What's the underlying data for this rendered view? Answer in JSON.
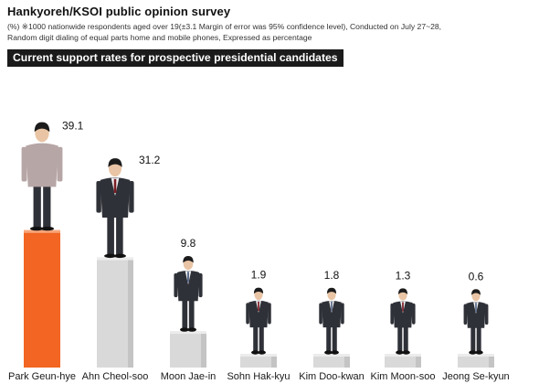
{
  "header": {
    "title": "Hankyoreh/KSOI public opinion survey",
    "note_line1": "(%) ※1000 nationwide respondents aged over 19(±3.1 Margin of error was 95% confidence level), Conducted on July 27~28,",
    "note_line2": "Random digit dialing of equal parts home and mobile phones, Expressed as percentage",
    "subtitle": "Current support rates for prospective presidential candidates"
  },
  "chart_data": {
    "type": "bar",
    "title": "Current support rates for prospective presidential candidates",
    "categories": [
      "Park Geun-hye",
      "Ahn Cheol-soo",
      "Moon Jae-in",
      "Sohn Hak-kyu",
      "Kim Doo-kwan",
      "Kim Moon-soo",
      "Jeong Se-kyun"
    ],
    "values": [
      39.1,
      31.2,
      9.8,
      1.9,
      1.8,
      1.3,
      0.6
    ],
    "value_labels": [
      "39.1",
      "31.2",
      "9.8",
      "1.9",
      "1.8",
      "1.3",
      "0.6"
    ],
    "highlight_index": 0,
    "colors": {
      "highlight_bar": "#f26522",
      "highlight_value": "#e8611a",
      "bar": "#d9d9d9",
      "bar_shade": "#c4c4c4",
      "suit": "#2f3138",
      "shirt": "#f2f2f2",
      "skin": "#e9c5a5",
      "hair": "#1c1c1c"
    }
  }
}
